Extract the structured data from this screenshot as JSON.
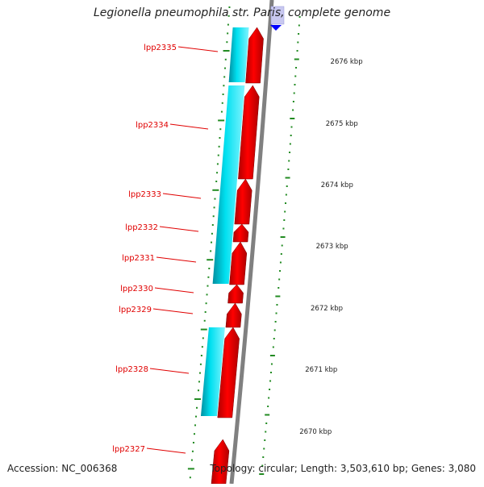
{
  "title": "Legionella pneumophila str. Paris, complete genome",
  "footer": {
    "accession": "Accession: NC_006368",
    "topology": "Topology: circular; Length: 3,503,610 bp; Genes: 3,080"
  },
  "colors": {
    "backbone": "#808080",
    "forward_gene": "#ff0000",
    "forward_gene_dark": "#b00000",
    "cds_band": "#00e0f0",
    "cds_band_dark": "#008fa0",
    "gc_tick": "#228b22",
    "label": "#e00000",
    "ruler_label": "#222222",
    "marker_blue": "#0000ff",
    "marker_pale": "#c8c8f0"
  },
  "scale_labels": [
    "2676 kbp",
    "2675 kbp",
    "2674 kbp",
    "2673 kbp",
    "2672 kbp",
    "2671 kbp",
    "2670 kbp"
  ],
  "gene_labels": [
    "lpp2335",
    "lpp2334",
    "lpp2333",
    "lpp2332",
    "lpp2331",
    "lpp2330",
    "lpp2329",
    "lpp2328",
    "lpp2327"
  ]
}
